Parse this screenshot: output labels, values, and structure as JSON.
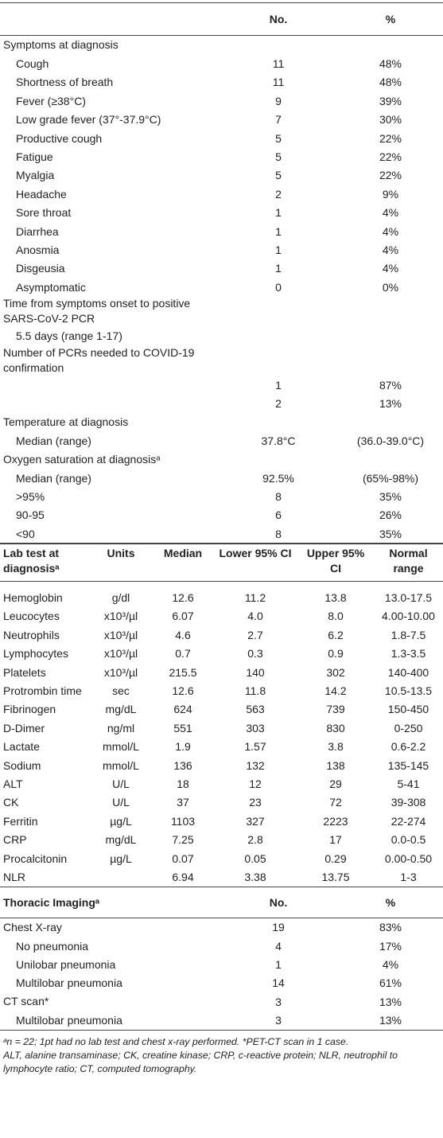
{
  "section1": {
    "header": {
      "no": "No.",
      "pct": "%"
    },
    "groups": [
      {
        "label": "Symptoms at diagnosis",
        "rows": [
          {
            "label": "Cough",
            "no": "11",
            "pct": "48%"
          },
          {
            "label": "Shortness of breath",
            "no": "11",
            "pct": "48%"
          },
          {
            "label": "Fever (≥38°C)",
            "no": "9",
            "pct": "39%"
          },
          {
            "label": "Low grade fever (37°-37.9°C)",
            "no": "7",
            "pct": "30%"
          },
          {
            "label": "Productive cough",
            "no": "5",
            "pct": "22%"
          },
          {
            "label": "Fatigue",
            "no": "5",
            "pct": "22%"
          },
          {
            "label": "Myalgia",
            "no": "5",
            "pct": "22%"
          },
          {
            "label": "Headache",
            "no": "2",
            "pct": "9%"
          },
          {
            "label": "Sore throat",
            "no": "1",
            "pct": "4%"
          },
          {
            "label": "Diarrhea",
            "no": "1",
            "pct": "4%"
          },
          {
            "label": "Anosmia",
            "no": "1",
            "pct": "4%"
          },
          {
            "label": "Disgeusia",
            "no": "1",
            "pct": "4%"
          },
          {
            "label": "Asymptomatic",
            "no": "0",
            "pct": "0%"
          }
        ]
      },
      {
        "label": "Time from symptoms onset to positive SARS-CoV-2 PCR",
        "rows": [
          {
            "label": "5.5 days (range 1-17)"
          }
        ]
      },
      {
        "label": "Number of PCRs needed to COVID-19 confirmation",
        "rows": [
          {
            "no": "1",
            "pct": "87%"
          },
          {
            "no": "2",
            "pct": "13%"
          }
        ]
      },
      {
        "label": "Temperature at diagnosis",
        "rows": [
          {
            "label": "Median (range)",
            "no": "37.8°C",
            "pct": "(36.0-39.0°C)"
          }
        ]
      },
      {
        "label": "Oxygen saturation at diagnosisᵃ",
        "rows": [
          {
            "label": "Median (range)",
            "no": "92.5%",
            "pct": "(65%-98%)"
          },
          {
            "label": ">95%",
            "no": "8",
            "pct": "35%"
          },
          {
            "label": "90-95",
            "no": "6",
            "pct": "26%"
          },
          {
            "label": "<90",
            "no": "8",
            "pct": "35%"
          }
        ]
      }
    ]
  },
  "lab": {
    "header": [
      "Lab test at diagnosisᵃ",
      "Units",
      "Median",
      "Lower 95% CI",
      "Upper 95% CI",
      "Normal range"
    ],
    "rows": [
      [
        "Hemoglobin",
        "g/dl",
        "12.6",
        "11.2",
        "13.8",
        "13.0-17.5"
      ],
      [
        "Leucocytes",
        "x10³/µl",
        "6.07",
        "4.0",
        "8.0",
        "4.00-10.00"
      ],
      [
        "Neutrophils",
        "x10³/µl",
        "4.6",
        "2.7",
        "6.2",
        "1.8-7.5"
      ],
      [
        "Lymphocytes",
        "x10³/µl",
        "0.7",
        "0.3",
        "0.9",
        "1.3-3.5"
      ],
      [
        "Platelets",
        "x10³/µl",
        "215.5",
        "140",
        "302",
        "140-400"
      ],
      [
        "Protrombin time",
        "sec",
        "12.6",
        "11.8",
        "14.2",
        "10.5-13.5"
      ],
      [
        "Fibrinogen",
        "mg/dL",
        "624",
        "563",
        "739",
        "150-450"
      ],
      [
        "D-Dimer",
        "ng/ml",
        "551",
        "303",
        "830",
        "0-250"
      ],
      [
        "Lactate",
        "mmol/L",
        "1.9",
        "1.57",
        "3.8",
        "0.6-2.2"
      ],
      [
        "Sodium",
        "mmol/L",
        "136",
        "132",
        "138",
        "135-145"
      ],
      [
        "ALT",
        "U/L",
        "18",
        "12",
        "29",
        "5-41"
      ],
      [
        "CK",
        "U/L",
        "37",
        "23",
        "72",
        "39-308"
      ],
      [
        "Ferritin",
        "µg/L",
        "1103",
        "327",
        "2223",
        "22-274"
      ],
      [
        "CRP",
        "mg/dL",
        "7.25",
        "2.8",
        "17",
        "0.0-0.5"
      ],
      [
        "Procalcitonin",
        "µg/L",
        "0.07",
        "0.05",
        "0.29",
        "0.00-0.50"
      ],
      [
        "NLR",
        null,
        "6.94",
        "3.38",
        "13.75",
        "1-3"
      ]
    ]
  },
  "imaging": {
    "header": {
      "title": "Thoracic Imagingᵃ",
      "no": "No.",
      "pct": "%"
    },
    "groups": [
      {
        "label": "Chest X-ray",
        "no": "19",
        "pct": "83%",
        "rows": [
          {
            "label": "No pneumonia",
            "no": "4",
            "pct": "17%"
          },
          {
            "label": "Unilobar pneumonia",
            "no": "1",
            "pct": "4%"
          },
          {
            "label": "Multilobar pneumonia",
            "no": "14",
            "pct": "61%"
          }
        ]
      },
      {
        "label": "CT scan*",
        "no": "3",
        "pct": "13%",
        "rows": [
          {
            "label": "Multilobar pneumonia",
            "no": "3",
            "pct": "13%"
          }
        ]
      }
    ]
  },
  "footnotes": [
    "ᵃn = 22; 1pt had no lab test and chest x-ray performed. *PET-CT scan in 1 case.",
    "ALT, alanine transaminase; CK, creatine kinase; CRP, c-reactive protein; NLR, neutrophil to lymphocyte ratio; CT, computed tomography."
  ]
}
